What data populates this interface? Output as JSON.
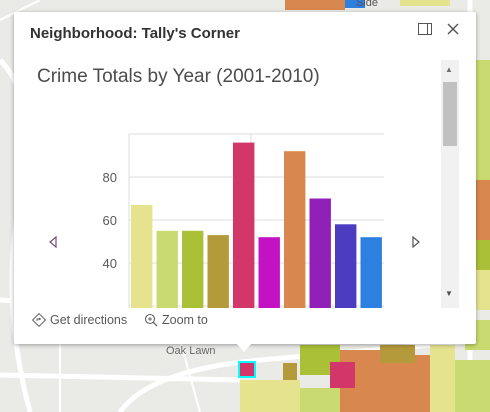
{
  "map": {
    "labels": {
      "top_right": "Side",
      "area": "Oak Lawn"
    }
  },
  "popup": {
    "title": "Neighborhood: Tally's Corner",
    "dock_icon": "dock-icon",
    "close_icon": "close-icon",
    "actions": {
      "directions_label": "Get directions",
      "zoom_label": "Zoom to"
    }
  },
  "colors": {
    "highlight": "#00ffff",
    "popup_bg": "#ffffff"
  },
  "chart_data": {
    "type": "bar",
    "title": "Crime Totals by Year (2001-2010)",
    "xlabel": "",
    "ylabel": "",
    "y_ticks": [
      40,
      60,
      80
    ],
    "values": [
      67,
      55,
      55,
      53,
      96,
      52,
      92,
      70,
      58,
      52
    ],
    "colors": [
      "#e6e38f",
      "#c9db70",
      "#aac036",
      "#b59a3c",
      "#d3376a",
      "#c312c3",
      "#d8884e",
      "#8f21b8",
      "#4c3cc1",
      "#2d7fe0"
    ],
    "grid": true
  }
}
